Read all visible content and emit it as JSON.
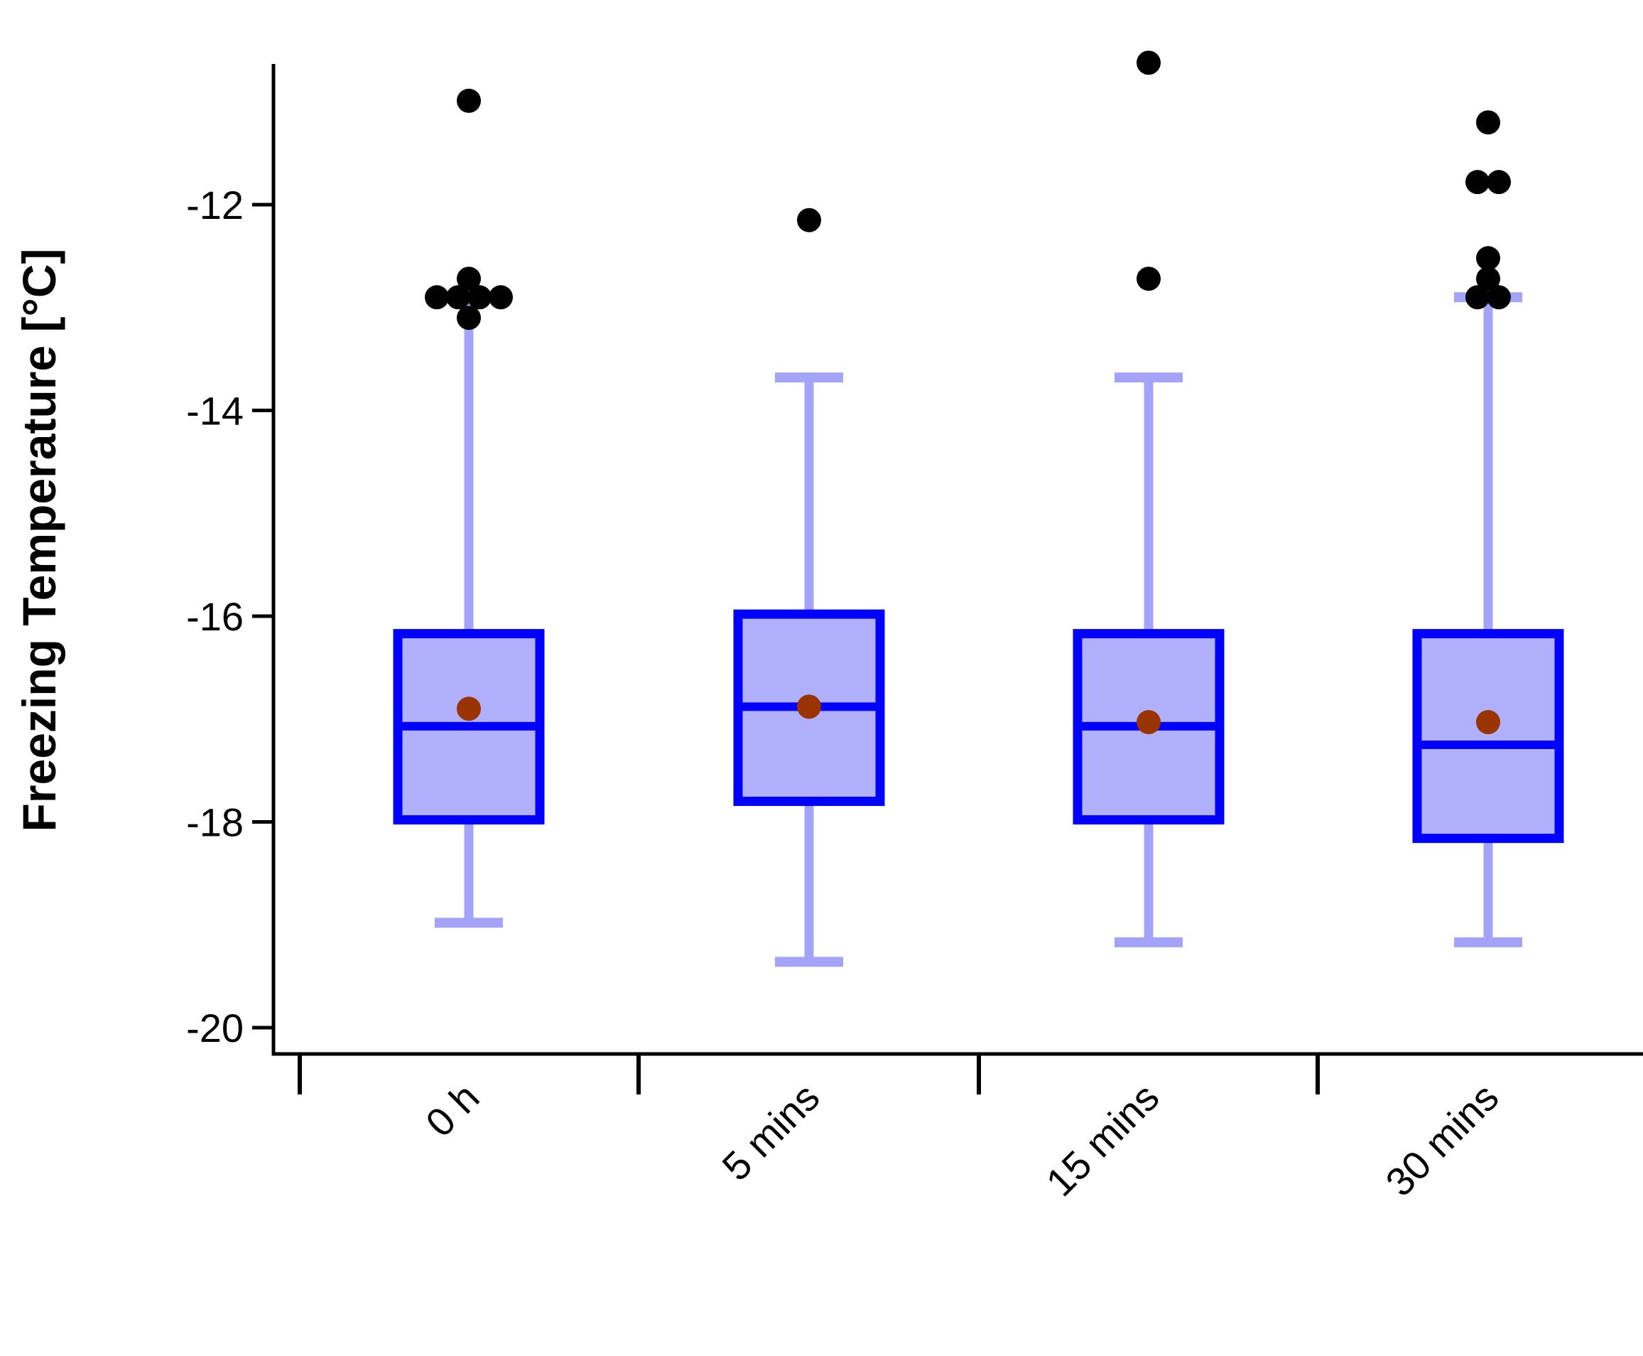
{
  "chart_data": {
    "type": "box",
    "ylabel": "Freezing Temperature [°C]",
    "xlabel": "",
    "ylim": [
      -20.25,
      -10.4
    ],
    "yticks": [
      -12,
      -14,
      -16,
      -18,
      -20
    ],
    "categories": [
      "0 h",
      "5 mins",
      "15 mins",
      "30 mins"
    ],
    "boxes": [
      {
        "category": "0 h",
        "whisker_low": -18.98,
        "q1": -17.98,
        "median": -17.07,
        "q3": -16.17,
        "whisker_high": -12.9,
        "mean": -16.9,
        "outliers": [
          -10.99,
          -12.72,
          -12.9,
          -12.9,
          -12.9,
          -12.9,
          -13.1
        ]
      },
      {
        "category": "5 mins",
        "whisker_low": -19.36,
        "q1": -17.8,
        "median": -16.88,
        "q3": -15.98,
        "whisker_high": -13.68,
        "mean": -16.88,
        "outliers": [
          -12.15
        ]
      },
      {
        "category": "15 mins",
        "whisker_low": -19.17,
        "q1": -17.98,
        "median": -17.07,
        "q3": -16.17,
        "whisker_high": -13.68,
        "mean": -17.03,
        "outliers": [
          -10.62,
          -12.72
        ]
      },
      {
        "category": "30 mins",
        "whisker_low": -19.17,
        "q1": -18.16,
        "median": -17.25,
        "q3": -16.17,
        "whisker_high": -12.9,
        "mean": -17.03,
        "outliers": [
          -11.2,
          -11.78,
          -11.78,
          -12.52,
          -12.72,
          -12.9,
          -12.9
        ]
      }
    ],
    "colors": {
      "box_edge": "#0000ff",
      "box_fill": "#b0b0fc",
      "whisker": "#a3a3fa",
      "mean_marker": "#993300",
      "outlier": "#000000",
      "axis": "#000000"
    },
    "grid": false,
    "legend": "none"
  }
}
